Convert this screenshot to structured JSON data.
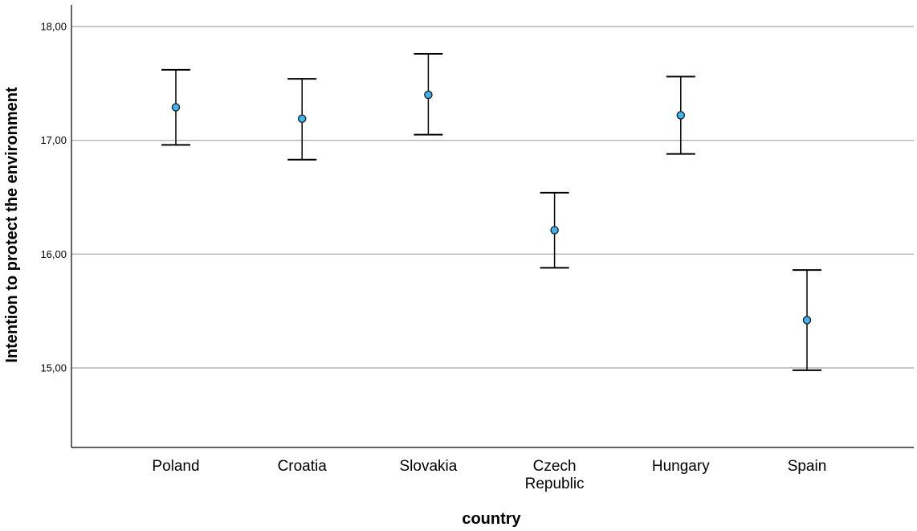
{
  "chart_data": {
    "type": "errorbar",
    "title": "",
    "xlabel": "country",
    "ylabel": "Intention to protect the environment",
    "ylim": [
      14.3,
      18.2
    ],
    "yticks": [
      15,
      16,
      17,
      18
    ],
    "ytick_labels": [
      "15,00",
      "16,00",
      "17,00",
      "18,00"
    ],
    "grid": true,
    "categories": [
      "Poland",
      "Croatia",
      "Slovakia",
      "Czech Republic",
      "Hungary",
      "Spain"
    ],
    "category_label_lines": [
      [
        "Poland"
      ],
      [
        "Croatia"
      ],
      [
        "Slovakia"
      ],
      [
        "Czech",
        "Republic"
      ],
      [
        "Hungary"
      ],
      [
        "Spain"
      ]
    ],
    "means": [
      17.29,
      17.19,
      17.4,
      16.21,
      17.22,
      15.42
    ],
    "lower": [
      16.96,
      16.83,
      17.05,
      15.88,
      16.88,
      14.98
    ],
    "upper": [
      17.62,
      17.54,
      17.76,
      16.54,
      17.56,
      15.86
    ]
  },
  "colors": {
    "marker_fill": "#3fb3ef",
    "marker_stroke": "#1a1a1a",
    "grid": "#b4b4b4",
    "axis": "#000000"
  }
}
